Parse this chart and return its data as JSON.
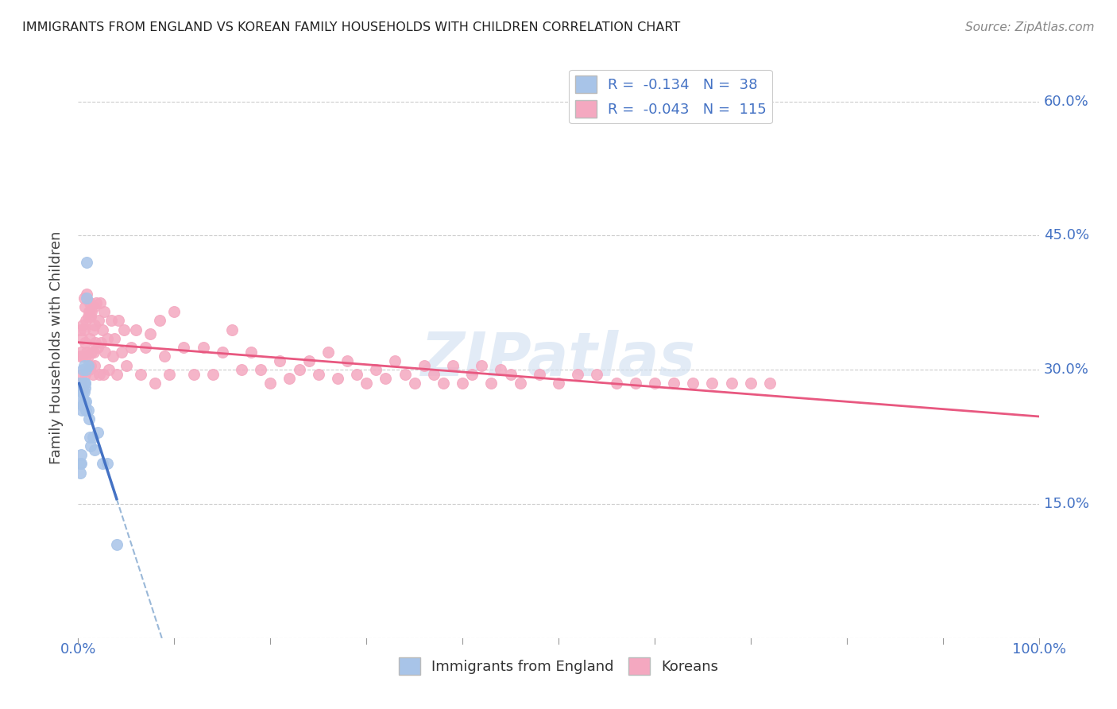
{
  "title": "IMMIGRANTS FROM ENGLAND VS KOREAN FAMILY HOUSEHOLDS WITH CHILDREN CORRELATION CHART",
  "source": "Source: ZipAtlas.com",
  "ylabel": "Family Households with Children",
  "legend_r1": "R =  -0.134",
  "legend_n1": "N =  38",
  "legend_r2": "R =  -0.043",
  "legend_n2": "N =  115",
  "color_england": "#a8c4e8",
  "color_korean": "#f4a8c0",
  "color_england_line": "#4472c4",
  "color_korean_line": "#e85880",
  "color_england_dash": "#9ab8d8",
  "color_axis_label": "#4472c4",
  "watermark": "ZIPatlas",
  "england_scatter_x": [
    0.001,
    0.002,
    0.002,
    0.003,
    0.003,
    0.003,
    0.004,
    0.004,
    0.004,
    0.004,
    0.005,
    0.005,
    0.005,
    0.005,
    0.006,
    0.006,
    0.006,
    0.006,
    0.007,
    0.007,
    0.007,
    0.007,
    0.008,
    0.008,
    0.008,
    0.009,
    0.009,
    0.01,
    0.01,
    0.011,
    0.012,
    0.013,
    0.015,
    0.017,
    0.02,
    0.025,
    0.03,
    0.04
  ],
  "england_scatter_y": [
    0.285,
    0.195,
    0.185,
    0.195,
    0.205,
    0.275,
    0.28,
    0.275,
    0.265,
    0.255,
    0.28,
    0.275,
    0.26,
    0.3,
    0.285,
    0.275,
    0.265,
    0.305,
    0.285,
    0.285,
    0.28,
    0.26,
    0.255,
    0.265,
    0.3,
    0.38,
    0.42,
    0.305,
    0.255,
    0.245,
    0.225,
    0.215,
    0.225,
    0.21,
    0.23,
    0.195,
    0.195,
    0.105
  ],
  "korean_scatter_x": [
    0.001,
    0.002,
    0.002,
    0.003,
    0.003,
    0.004,
    0.004,
    0.005,
    0.005,
    0.005,
    0.006,
    0.006,
    0.007,
    0.007,
    0.007,
    0.008,
    0.008,
    0.009,
    0.009,
    0.01,
    0.01,
    0.011,
    0.011,
    0.012,
    0.012,
    0.013,
    0.013,
    0.014,
    0.014,
    0.015,
    0.015,
    0.016,
    0.016,
    0.017,
    0.017,
    0.018,
    0.019,
    0.02,
    0.021,
    0.022,
    0.023,
    0.024,
    0.025,
    0.026,
    0.027,
    0.028,
    0.03,
    0.032,
    0.034,
    0.036,
    0.038,
    0.04,
    0.042,
    0.045,
    0.048,
    0.05,
    0.055,
    0.06,
    0.065,
    0.07,
    0.075,
    0.08,
    0.085,
    0.09,
    0.095,
    0.1,
    0.11,
    0.12,
    0.13,
    0.14,
    0.15,
    0.16,
    0.17,
    0.18,
    0.19,
    0.2,
    0.21,
    0.22,
    0.23,
    0.24,
    0.25,
    0.26,
    0.27,
    0.28,
    0.29,
    0.3,
    0.31,
    0.32,
    0.33,
    0.34,
    0.35,
    0.36,
    0.37,
    0.38,
    0.39,
    0.4,
    0.41,
    0.42,
    0.43,
    0.44,
    0.45,
    0.46,
    0.48,
    0.5,
    0.52,
    0.54,
    0.56,
    0.58,
    0.6,
    0.62,
    0.64,
    0.66,
    0.68,
    0.7,
    0.72
  ],
  "korean_scatter_y": [
    0.285,
    0.315,
    0.345,
    0.32,
    0.285,
    0.335,
    0.295,
    0.35,
    0.315,
    0.28,
    0.38,
    0.345,
    0.37,
    0.33,
    0.295,
    0.355,
    0.315,
    0.385,
    0.32,
    0.36,
    0.315,
    0.365,
    0.3,
    0.375,
    0.335,
    0.36,
    0.305,
    0.365,
    0.32,
    0.345,
    0.295,
    0.37,
    0.32,
    0.35,
    0.305,
    0.33,
    0.375,
    0.325,
    0.355,
    0.295,
    0.375,
    0.33,
    0.345,
    0.295,
    0.365,
    0.32,
    0.335,
    0.3,
    0.355,
    0.315,
    0.335,
    0.295,
    0.355,
    0.32,
    0.345,
    0.305,
    0.325,
    0.345,
    0.295,
    0.325,
    0.34,
    0.285,
    0.355,
    0.315,
    0.295,
    0.365,
    0.325,
    0.295,
    0.325,
    0.295,
    0.32,
    0.345,
    0.3,
    0.32,
    0.3,
    0.285,
    0.31,
    0.29,
    0.3,
    0.31,
    0.295,
    0.32,
    0.29,
    0.31,
    0.295,
    0.285,
    0.3,
    0.29,
    0.31,
    0.295,
    0.285,
    0.305,
    0.295,
    0.285,
    0.305,
    0.285,
    0.295,
    0.305,
    0.285,
    0.3,
    0.295,
    0.285,
    0.295,
    0.285,
    0.295,
    0.295,
    0.285,
    0.285,
    0.285,
    0.285,
    0.285,
    0.285,
    0.285,
    0.285,
    0.285
  ],
  "xmin": 0.0,
  "xmax": 1.0,
  "ymin": 0.0,
  "ymax": 0.65,
  "ytick_positions": [
    0.15,
    0.3,
    0.45,
    0.6
  ],
  "ytick_labels": [
    "15.0%",
    "30.0%",
    "45.0%",
    "60.0%"
  ],
  "grid_yticks": [
    0.0,
    0.15,
    0.3,
    0.45,
    0.6
  ]
}
